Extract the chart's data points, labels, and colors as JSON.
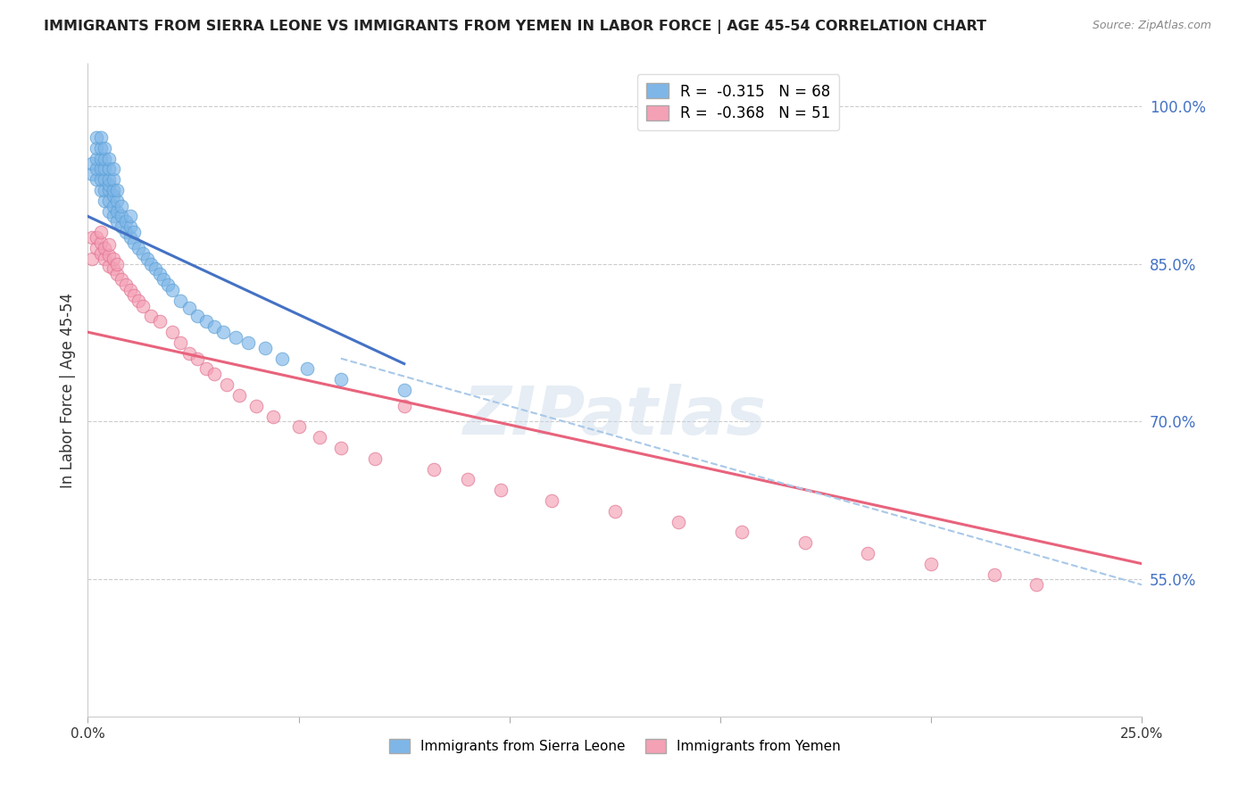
{
  "title": "IMMIGRANTS FROM SIERRA LEONE VS IMMIGRANTS FROM YEMEN IN LABOR FORCE | AGE 45-54 CORRELATION CHART",
  "source": "Source: ZipAtlas.com",
  "ylabel": "In Labor Force | Age 45-54",
  "ylabel_ticks": [
    "100.0%",
    "85.0%",
    "70.0%",
    "55.0%"
  ],
  "ylabel_tick_vals": [
    1.0,
    0.85,
    0.7,
    0.55
  ],
  "xlim": [
    0.0,
    0.25
  ],
  "ylim": [
    0.42,
    1.04
  ],
  "legend1_r": "-0.315",
  "legend1_n": "68",
  "legend2_r": "-0.368",
  "legend2_n": "51",
  "color_sierra": "#7EB6E8",
  "color_yemen": "#F4A0B5",
  "color_line_sierra": "#4472C4",
  "color_line_yemen": "#E8637C",
  "color_dashed": "#A8C8E8",
  "watermark": "ZIPatlas",
  "sierra_leone_x": [
    0.001,
    0.001,
    0.002,
    0.002,
    0.002,
    0.002,
    0.002,
    0.003,
    0.003,
    0.003,
    0.003,
    0.003,
    0.003,
    0.004,
    0.004,
    0.004,
    0.004,
    0.004,
    0.004,
    0.005,
    0.005,
    0.005,
    0.005,
    0.005,
    0.005,
    0.005,
    0.006,
    0.006,
    0.006,
    0.006,
    0.006,
    0.006,
    0.007,
    0.007,
    0.007,
    0.007,
    0.008,
    0.008,
    0.008,
    0.009,
    0.009,
    0.01,
    0.01,
    0.01,
    0.011,
    0.011,
    0.012,
    0.013,
    0.014,
    0.015,
    0.016,
    0.017,
    0.018,
    0.019,
    0.02,
    0.022,
    0.024,
    0.026,
    0.028,
    0.03,
    0.032,
    0.035,
    0.038,
    0.042,
    0.046,
    0.052,
    0.06,
    0.075
  ],
  "sierra_leone_y": [
    0.935,
    0.945,
    0.93,
    0.94,
    0.95,
    0.96,
    0.97,
    0.92,
    0.93,
    0.94,
    0.95,
    0.96,
    0.97,
    0.91,
    0.92,
    0.93,
    0.94,
    0.95,
    0.96,
    0.9,
    0.91,
    0.92,
    0.925,
    0.93,
    0.94,
    0.95,
    0.895,
    0.905,
    0.915,
    0.92,
    0.93,
    0.94,
    0.89,
    0.9,
    0.91,
    0.92,
    0.885,
    0.895,
    0.905,
    0.88,
    0.89,
    0.875,
    0.885,
    0.895,
    0.87,
    0.88,
    0.865,
    0.86,
    0.855,
    0.85,
    0.845,
    0.84,
    0.835,
    0.83,
    0.825,
    0.815,
    0.808,
    0.8,
    0.795,
    0.79,
    0.785,
    0.78,
    0.775,
    0.77,
    0.76,
    0.75,
    0.74,
    0.73
  ],
  "yemen_x": [
    0.001,
    0.001,
    0.002,
    0.002,
    0.003,
    0.003,
    0.003,
    0.004,
    0.004,
    0.005,
    0.005,
    0.005,
    0.006,
    0.006,
    0.007,
    0.007,
    0.008,
    0.009,
    0.01,
    0.011,
    0.012,
    0.013,
    0.015,
    0.017,
    0.02,
    0.022,
    0.024,
    0.026,
    0.028,
    0.03,
    0.033,
    0.036,
    0.04,
    0.044,
    0.05,
    0.055,
    0.06,
    0.068,
    0.075,
    0.082,
    0.09,
    0.098,
    0.11,
    0.125,
    0.14,
    0.155,
    0.17,
    0.185,
    0.2,
    0.215,
    0.225
  ],
  "yemen_y": [
    0.875,
    0.855,
    0.865,
    0.875,
    0.86,
    0.87,
    0.88,
    0.855,
    0.865,
    0.848,
    0.858,
    0.868,
    0.845,
    0.855,
    0.84,
    0.85,
    0.835,
    0.83,
    0.825,
    0.82,
    0.815,
    0.81,
    0.8,
    0.795,
    0.785,
    0.775,
    0.765,
    0.76,
    0.75,
    0.745,
    0.735,
    0.725,
    0.715,
    0.705,
    0.695,
    0.685,
    0.675,
    0.665,
    0.715,
    0.655,
    0.645,
    0.635,
    0.625,
    0.615,
    0.605,
    0.595,
    0.585,
    0.575,
    0.565,
    0.555,
    0.545
  ],
  "sl_line_x0": 0.0,
  "sl_line_y0": 0.895,
  "sl_line_x1": 0.075,
  "sl_line_y1": 0.755,
  "ye_line_x0": 0.0,
  "ye_line_y0": 0.785,
  "ye_line_x1": 0.25,
  "ye_line_y1": 0.565,
  "dash_line_x0": 0.06,
  "dash_line_y0": 0.76,
  "dash_line_x1": 0.25,
  "dash_line_y1": 0.545
}
